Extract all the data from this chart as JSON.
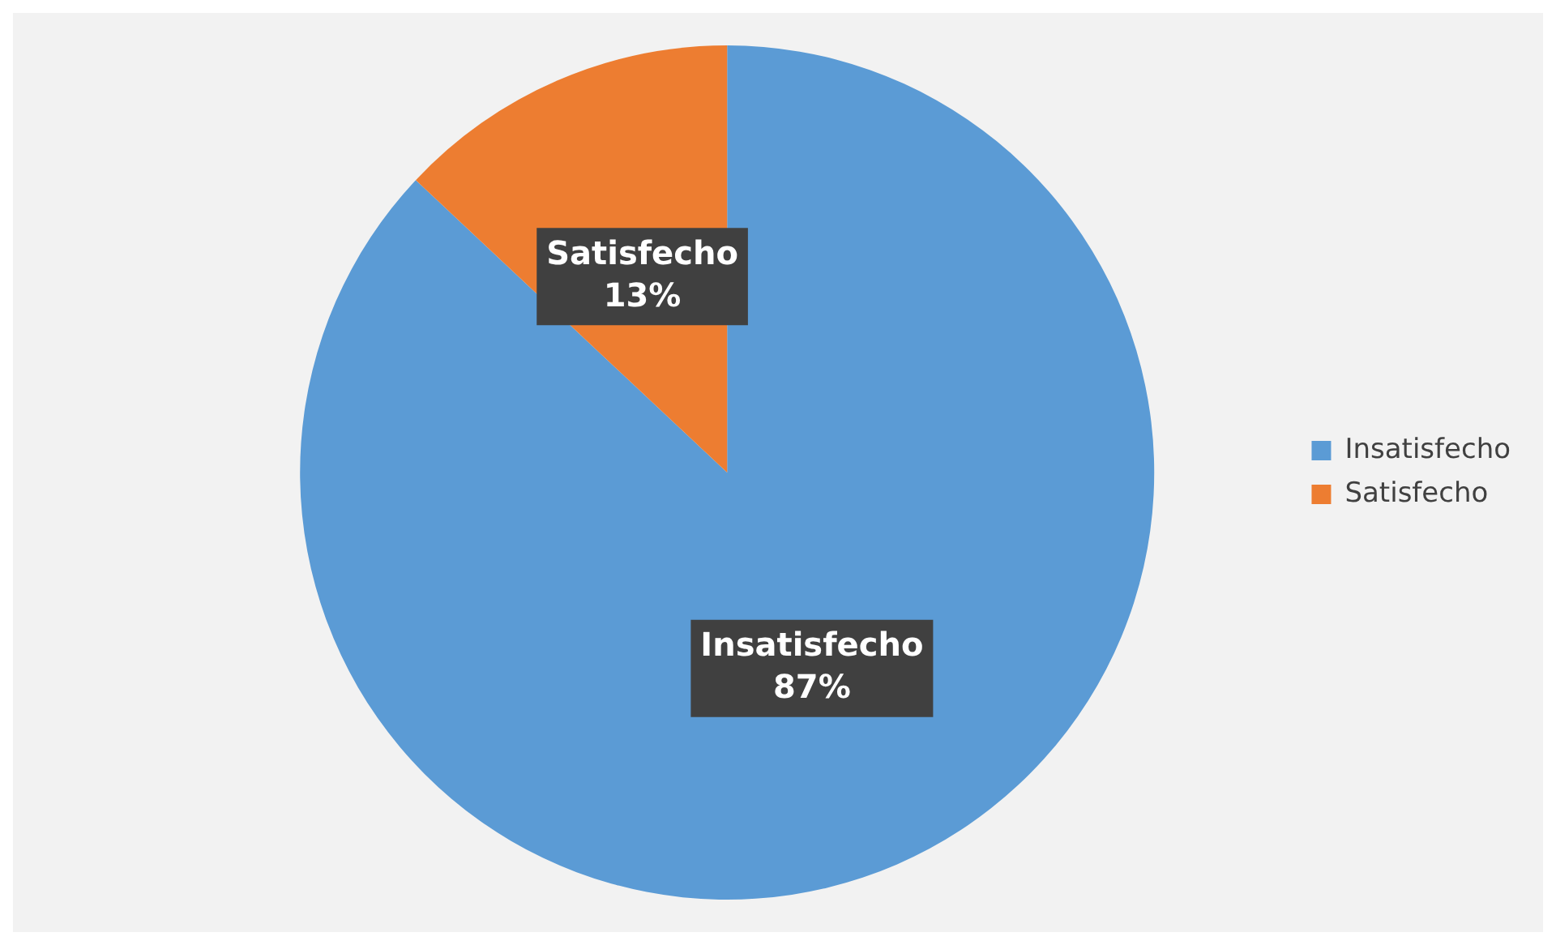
{
  "chart_data": {
    "type": "pie",
    "categories": [
      "Insatisfecho",
      "Satisfecho"
    ],
    "values": [
      87,
      13
    ],
    "colors": [
      "#5b9bd5",
      "#ed7d31"
    ],
    "value_labels": [
      "87%",
      "13%"
    ],
    "legend": "right"
  }
}
